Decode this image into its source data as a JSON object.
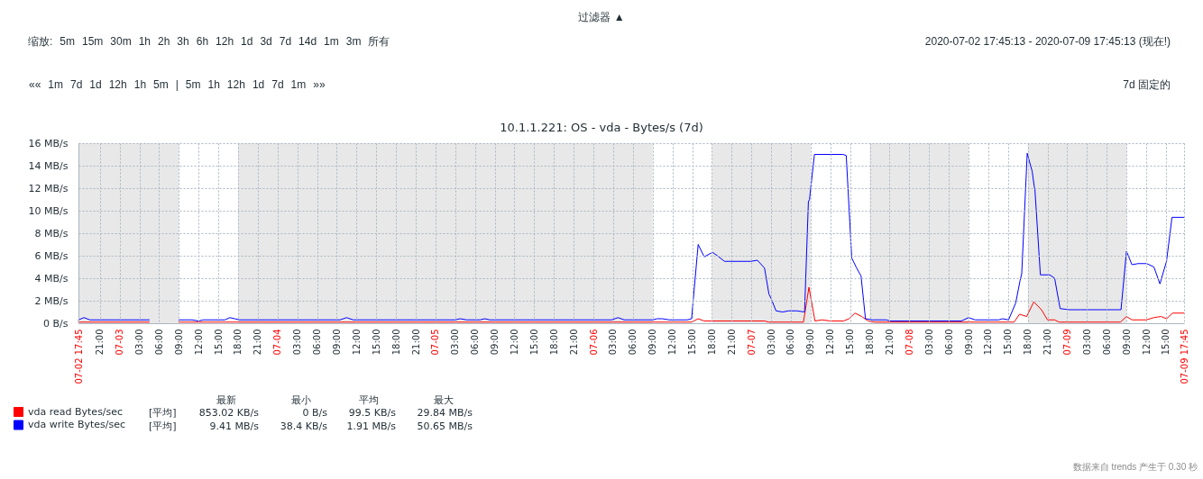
{
  "chart_data": {
    "type": "line",
    "title": "10.1.1.221: OS - vda - Bytes/s (7d)",
    "xlim": [
      "2020-07-02T17:45",
      "2020-07-09T17:45"
    ],
    "xticks": [
      {
        "value": "2020-07-02T17:45",
        "label": "07-02 17:45"
      },
      {
        "value": "2020-07-02T21:00",
        "label": "21:00"
      },
      {
        "value": "2020-07-03T00:00",
        "label": "07-03"
      },
      {
        "value": "2020-07-03T03:00",
        "label": "03:00"
      },
      {
        "value": "2020-07-03T06:00",
        "label": "06:00"
      },
      {
        "value": "2020-07-03T09:00",
        "label": "09:00"
      },
      {
        "value": "2020-07-03T12:00",
        "label": "12:00"
      },
      {
        "value": "2020-07-03T15:00",
        "label": "15:00"
      },
      {
        "value": "2020-07-03T18:00",
        "label": "18:00"
      },
      {
        "value": "2020-07-03T21:00",
        "label": "21:00"
      },
      {
        "value": "2020-07-04T00:00",
        "label": "07-04"
      },
      {
        "value": "2020-07-04T03:00",
        "label": "03:00"
      },
      {
        "value": "2020-07-04T06:00",
        "label": "06:00"
      },
      {
        "value": "2020-07-04T09:00",
        "label": "09:00"
      },
      {
        "value": "2020-07-04T12:00",
        "label": "12:00"
      },
      {
        "value": "2020-07-04T15:00",
        "label": "15:00"
      },
      {
        "value": "2020-07-04T18:00",
        "label": "18:00"
      },
      {
        "value": "2020-07-04T21:00",
        "label": "21:00"
      },
      {
        "value": "2020-07-05T00:00",
        "label": "07-05"
      },
      {
        "value": "2020-07-05T03:00",
        "label": "03:00"
      },
      {
        "value": "2020-07-05T06:00",
        "label": "06:00"
      },
      {
        "value": "2020-07-05T09:00",
        "label": "09:00"
      },
      {
        "value": "2020-07-05T12:00",
        "label": "12:00"
      },
      {
        "value": "2020-07-05T15:00",
        "label": "15:00"
      },
      {
        "value": "2020-07-05T18:00",
        "label": "18:00"
      },
      {
        "value": "2020-07-05T21:00",
        "label": "21:00"
      },
      {
        "value": "2020-07-06T00:00",
        "label": "07-06"
      },
      {
        "value": "2020-07-06T03:00",
        "label": "03:00"
      },
      {
        "value": "2020-07-06T06:00",
        "label": "06:00"
      },
      {
        "value": "2020-07-06T09:00",
        "label": "09:00"
      },
      {
        "value": "2020-07-06T12:00",
        "label": "12:00"
      },
      {
        "value": "2020-07-06T15:00",
        "label": "15:00"
      },
      {
        "value": "2020-07-06T18:00",
        "label": "18:00"
      },
      {
        "value": "2020-07-06T21:00",
        "label": "21:00"
      },
      {
        "value": "2020-07-07T00:00",
        "label": "07-07"
      },
      {
        "value": "2020-07-07T03:00",
        "label": "03:00"
      },
      {
        "value": "2020-07-07T06:00",
        "label": "06:00"
      },
      {
        "value": "2020-07-07T09:00",
        "label": "09:00"
      },
      {
        "value": "2020-07-07T12:00",
        "label": "12:00"
      },
      {
        "value": "2020-07-07T15:00",
        "label": "15:00"
      },
      {
        "value": "2020-07-07T18:00",
        "label": "18:00"
      },
      {
        "value": "2020-07-07T21:00",
        "label": "21:00"
      },
      {
        "value": "2020-07-08T00:00",
        "label": "07-08"
      },
      {
        "value": "2020-07-08T03:00",
        "label": "03:00"
      },
      {
        "value": "2020-07-08T06:00",
        "label": "06:00"
      },
      {
        "value": "2020-07-08T09:00",
        "label": "09:00"
      },
      {
        "value": "2020-07-08T12:00",
        "label": "12:00"
      },
      {
        "value": "2020-07-08T15:00",
        "label": "15:00"
      },
      {
        "value": "2020-07-08T18:00",
        "label": "18:00"
      },
      {
        "value": "2020-07-08T21:00",
        "label": "21:00"
      },
      {
        "value": "2020-07-09T00:00",
        "label": "07-09"
      },
      {
        "value": "2020-07-09T03:00",
        "label": "03:00"
      },
      {
        "value": "2020-07-09T06:00",
        "label": "06:00"
      },
      {
        "value": "2020-07-09T09:00",
        "label": "09:00"
      },
      {
        "value": "2020-07-09T12:00",
        "label": "12:00"
      },
      {
        "value": "2020-07-09T15:00",
        "label": "15:00"
      },
      {
        "value": "2020-07-09T17:45",
        "label": "07-09 17:45"
      }
    ],
    "ylim": [
      0,
      16
    ],
    "yticks": [
      {
        "value": 0,
        "label": "0 B/s"
      },
      {
        "value": 2,
        "label": "2 MB/s"
      },
      {
        "value": 4,
        "label": "4 MB/s"
      },
      {
        "value": 6,
        "label": "6 MB/s"
      },
      {
        "value": 8,
        "label": "8 MB/s"
      },
      {
        "value": 10,
        "label": "10 MB/s"
      },
      {
        "value": 12,
        "label": "12 MB/s"
      },
      {
        "value": 14,
        "label": "14 MB/s"
      },
      {
        "value": 16,
        "label": "16 MB/s"
      }
    ],
    "grid": true,
    "legend": "bottom left",
    "bands": [
      {
        "axis": "x",
        "from": "2020-07-02T17:45",
        "to": "2020-07-03T09:00",
        "color": "#e8e8e8"
      },
      {
        "axis": "x",
        "from": "2020-07-03T18:00",
        "to": "2020-07-06T09:00",
        "color": "#e8e8e8"
      },
      {
        "axis": "x",
        "from": "2020-07-06T18:00",
        "to": "2020-07-07T09:00",
        "color": "#e8e8e8"
      },
      {
        "axis": "x",
        "from": "2020-07-07T18:00",
        "to": "2020-07-08T09:00",
        "color": "#e8e8e8"
      },
      {
        "axis": "x",
        "from": "2020-07-08T18:00",
        "to": "2020-07-09T09:00",
        "color": "#e8e8e8"
      }
    ],
    "series": [
      {
        "name": "vda read Bytes/sec",
        "color": "#ff0000",
        "x": [
          "2020-07-02T17:45",
          "2020-07-03T04:30",
          "2020-07-03T06:30",
          "2020-07-03T09:00",
          "2020-07-06T14:15",
          "2020-07-06T14:55",
          "2020-07-06T15:55",
          "2020-07-06T16:50",
          "2020-07-07T02:00",
          "2020-07-07T02:40",
          "2020-07-07T07:55",
          "2020-07-07T08:45",
          "2020-07-07T09:40",
          "2020-07-07T10:45",
          "2020-07-07T12:00",
          "2020-07-07T14:00",
          "2020-07-07T14:50",
          "2020-07-07T15:45",
          "2020-07-07T16:45",
          "2020-07-07T17:45",
          "2020-07-07T18:50",
          "2020-07-08T15:55",
          "2020-07-08T16:45",
          "2020-07-08T17:50",
          "2020-07-08T18:55",
          "2020-07-08T20:05",
          "2020-07-08T21:00",
          "2020-07-08T22:05",
          "2020-07-08T22:45",
          "2020-07-09T08:05",
          "2020-07-09T09:00",
          "2020-07-09T09:50",
          "2020-07-09T12:00",
          "2020-07-09T13:10",
          "2020-07-09T14:15",
          "2020-07-09T15:05",
          "2020-07-09T16:00",
          "2020-07-09T17:45"
        ],
        "values": [
          0.1,
          0.1,
          null,
          0.1,
          0.1,
          0.1,
          0.4,
          0.2,
          0.2,
          0.1,
          0.1,
          3.2,
          0.2,
          0.3,
          0.2,
          0.2,
          0.4,
          0.9,
          0.6,
          0.2,
          0.1,
          0.1,
          0.8,
          0.6,
          1.9,
          1.2,
          0.3,
          0.3,
          0.1,
          0.1,
          0.6,
          0.3,
          0.3,
          0.5,
          0.6,
          0.4,
          0.9,
          0.9
        ]
      },
      {
        "name": "vda write Bytes/sec",
        "color": "#0000ff",
        "x": [
          "2020-07-02T17:45",
          "2020-07-02T18:35",
          "2020-07-02T19:30",
          "2020-07-03T04:30",
          "2020-07-03T06:30",
          "2020-07-03T09:00",
          "2020-07-03T11:00",
          "2020-07-03T12:00",
          "2020-07-03T12:45",
          "2020-07-03T16:00",
          "2020-07-03T16:45",
          "2020-07-03T17:30",
          "2020-07-03T18:15",
          "2020-07-04T09:30",
          "2020-07-04T10:30",
          "2020-07-04T11:30",
          "2020-07-05T03:00",
          "2020-07-05T03:45",
          "2020-07-05T04:45",
          "2020-07-05T06:45",
          "2020-07-05T07:30",
          "2020-07-05T08:15",
          "2020-07-06T02:45",
          "2020-07-06T03:45",
          "2020-07-06T04:40",
          "2020-07-06T09:00",
          "2020-07-06T09:40",
          "2020-07-06T10:30",
          "2020-07-06T11:30",
          "2020-07-06T14:15",
          "2020-07-06T14:55",
          "2020-07-06T15:55",
          "2020-07-06T16:50",
          "2020-07-06T18:05",
          "2020-07-06T18:50",
          "2020-07-06T19:55",
          "2020-07-06T23:55",
          "2020-07-07T00:55",
          "2020-07-07T02:00",
          "2020-07-07T02:40",
          "2020-07-07T03:00",
          "2020-07-07T03:45",
          "2020-07-07T04:45",
          "2020-07-07T05:40",
          "2020-07-07T06:55",
          "2020-07-07T08:05",
          "2020-07-07T08:40",
          "2020-07-07T08:50",
          "2020-07-07T09:35",
          "2020-07-07T13:55",
          "2020-07-07T14:25",
          "2020-07-07T15:15",
          "2020-07-07T16:00",
          "2020-07-07T16:40",
          "2020-07-07T17:20",
          "2020-07-07T18:25",
          "2020-07-07T20:30",
          "2020-07-07T21:05",
          "2020-07-08T07:55",
          "2020-07-08T09:00",
          "2020-07-08T10:00",
          "2020-07-08T13:35",
          "2020-07-08T14:10",
          "2020-07-08T15:05",
          "2020-07-08T16:10",
          "2020-07-08T16:50",
          "2020-07-08T17:05",
          "2020-07-08T17:55",
          "2020-07-08T18:40",
          "2020-07-08T19:00",
          "2020-07-08T19:05",
          "2020-07-08T19:55",
          "2020-07-08T21:20",
          "2020-07-08T22:05",
          "2020-07-08T22:55",
          "2020-07-09T00:20",
          "2020-07-09T02:05",
          "2020-07-09T03:00",
          "2020-07-09T03:55",
          "2020-07-09T04:45",
          "2020-07-09T08:10",
          "2020-07-09T09:00",
          "2020-07-09T09:50",
          "2020-07-09T10:45",
          "2020-07-09T12:05",
          "2020-07-09T13:10",
          "2020-07-09T14:05",
          "2020-07-09T15:05",
          "2020-07-09T15:55",
          "2020-07-09T17:45"
        ],
        "values": [
          0.3,
          0.5,
          0.3,
          0.3,
          null,
          0.3,
          0.3,
          0.2,
          0.3,
          0.3,
          0.5,
          0.4,
          0.3,
          0.3,
          0.5,
          0.3,
          0.3,
          0.4,
          0.3,
          0.3,
          0.4,
          0.3,
          0.3,
          0.5,
          0.3,
          0.3,
          0.4,
          0.4,
          0.3,
          0.3,
          0.4,
          7.0,
          5.9,
          6.3,
          6.0,
          5.5,
          5.5,
          5.6,
          4.9,
          2.6,
          2.2,
          1.1,
          1.0,
          1.1,
          1.1,
          1.0,
          10.8,
          11.0,
          15.0,
          15.0,
          14.9,
          5.8,
          4.9,
          4.2,
          0.4,
          0.3,
          0.3,
          0.2,
          0.2,
          0.5,
          0.3,
          0.3,
          0.4,
          0.3,
          1.8,
          3.8,
          4.4,
          15.1,
          13.5,
          12.1,
          11.9,
          4.3,
          4.3,
          4.0,
          1.3,
          1.2,
          1.2,
          1.2,
          1.2,
          1.2,
          1.2,
          6.4,
          5.2,
          5.3,
          5.3,
          5.0,
          3.5,
          5.5,
          9.41,
          9.41
        ]
      }
    ],
    "annotations": [
      "过滤器 ▲",
      "缩放: 5m 15m 30m 1h 2h 3h 6h 12h 1d 3d 7d 14d 1m 3m 所有",
      "2020-07-02 17:45:13 - 2020-07-09 17:45:13 (现在!)",
      "«« 1m 7d 1d 12h 1h 5m | 5m 1h 12h 1d 7d 1m »»",
      "7d 固定的",
      "最新",
      "最小",
      "平均",
      "最大",
      "[平均]",
      "853.02 KB/s",
      "0 B/s",
      "99.5 KB/s",
      "29.84 MB/s",
      "[平均]",
      "9.41 MB/s",
      "38.4 KB/s",
      "1.91 MB/s",
      "50.65 MB/s",
      "数据来自 trends 产生于 0.30 秒"
    ]
  }
}
